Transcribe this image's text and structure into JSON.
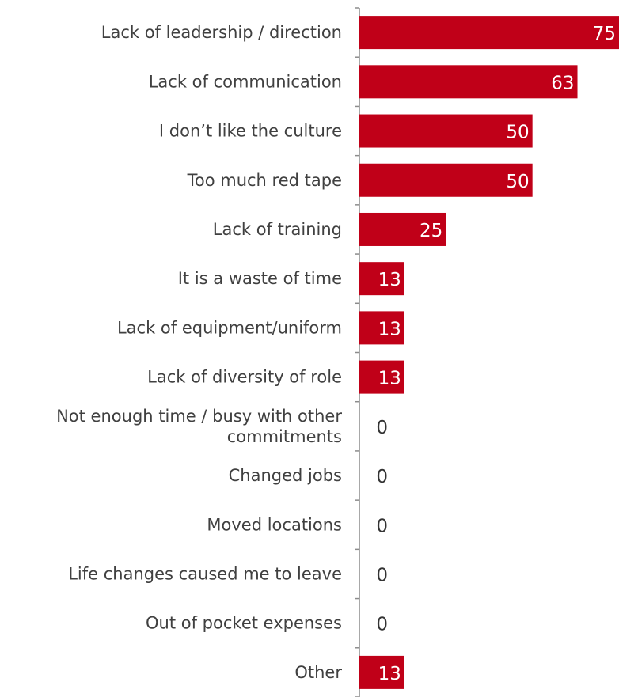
{
  "chart_data": {
    "type": "bar",
    "orientation": "horizontal",
    "categories": [
      "Lack of leadership / direction",
      "Lack of communication",
      "I don’t like the culture",
      "Too much red tape",
      "Lack of training",
      "It is a waste of time",
      "Lack of equipment/uniform",
      "Lack of diversity of role",
      "Not enough time / busy with other commitments",
      "Changed jobs",
      "Moved locations",
      "Life changes caused me to leave",
      "Out of pocket expenses",
      "Other"
    ],
    "values": [
      75,
      63,
      50,
      50,
      25,
      13,
      13,
      13,
      0,
      0,
      0,
      0,
      0,
      13
    ],
    "xlim": [
      0,
      75
    ],
    "bar_color": "#c00018",
    "grid": false,
    "legend": "none"
  }
}
